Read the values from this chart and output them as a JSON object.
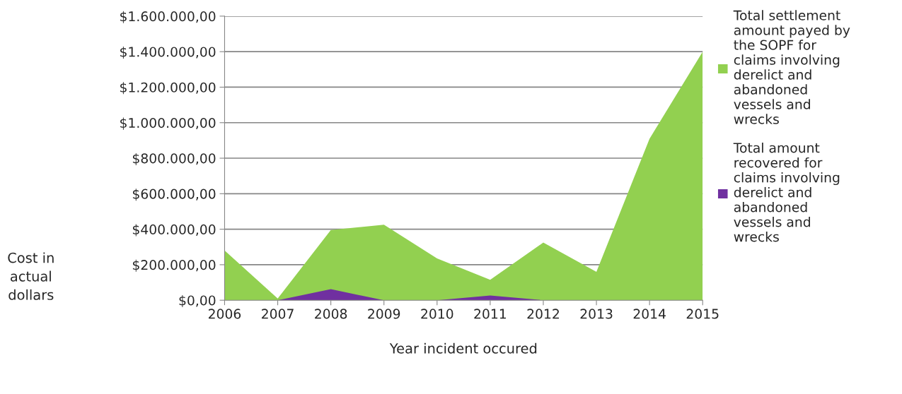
{
  "chart_data": {
    "type": "area",
    "xlabel": "Year incident occured",
    "ylabel": "Cost in actual dollars",
    "categories": [
      "2006",
      "2007",
      "2008",
      "2009",
      "2010",
      "2011",
      "2012",
      "2013",
      "2014",
      "2015"
    ],
    "series": [
      {
        "name": "Total settlement amount payed by the SOPF for claims involving derelict and abandoned vessels and wrecks",
        "color": "#92d050",
        "values": [
          280000,
          10000,
          395000,
          425000,
          235000,
          115000,
          325000,
          160000,
          910000,
          1400000
        ]
      },
      {
        "name": "Total amount recovered for claims involving derelict and abandoned vessels and wrecks",
        "color": "#7030a0",
        "values": [
          0,
          0,
          62000,
          0,
          0,
          27000,
          0,
          0,
          0,
          0
        ]
      }
    ],
    "ylim": [
      0,
      1600000
    ],
    "yticks": [
      {
        "value": 0,
        "label": "$0,00"
      },
      {
        "value": 200000,
        "label": "$200.000,00"
      },
      {
        "value": 400000,
        "label": "$400.000,00"
      },
      {
        "value": 600000,
        "label": "$600.000,00"
      },
      {
        "value": 800000,
        "label": "$800.000,00"
      },
      {
        "value": 1000000,
        "label": "$1.000.000,00"
      },
      {
        "value": 1200000,
        "label": "$1.200.000,00"
      },
      {
        "value": 1400000,
        "label": "$1.400.000,00"
      },
      {
        "value": 1600000,
        "label": "$1.600.000,00"
      }
    ],
    "grid": "y",
    "legend": "right"
  }
}
